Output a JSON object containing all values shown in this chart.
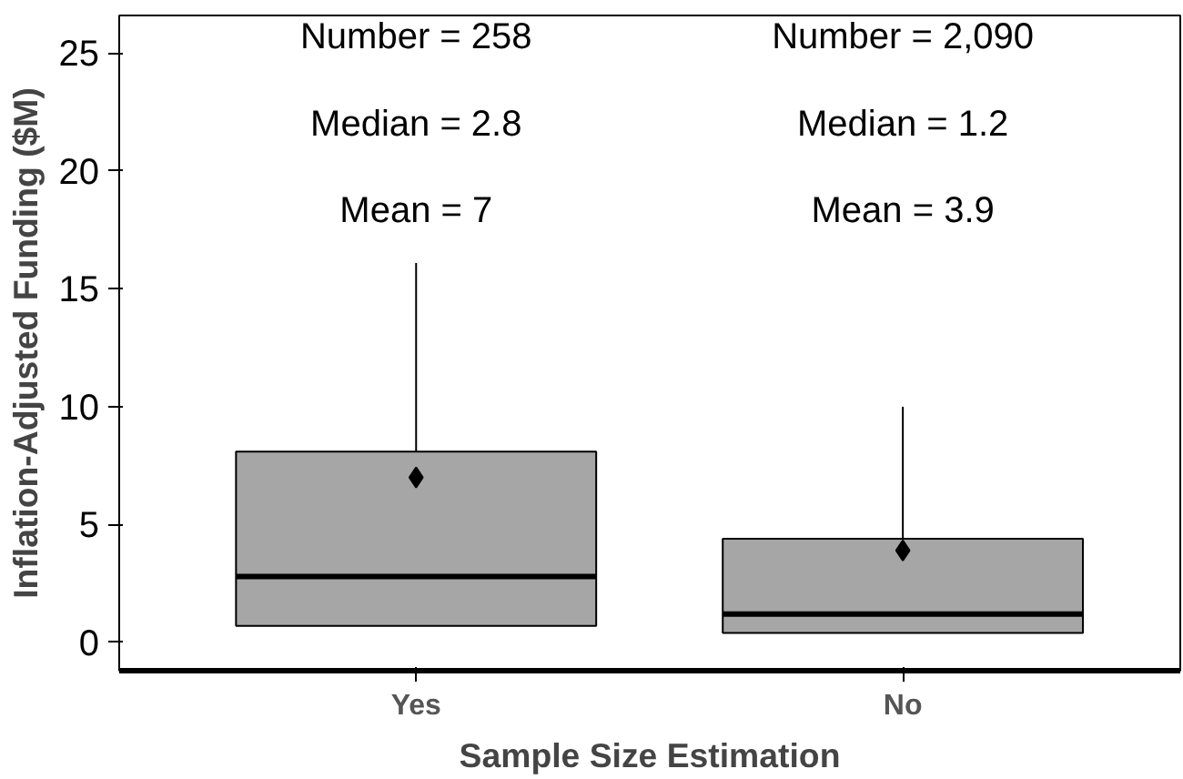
{
  "chart_data": {
    "type": "box",
    "xlabel": "Sample Size Estimation",
    "ylabel": "Inflation-Adjusted Funding ($M)",
    "categories": [
      "Yes",
      "No"
    ],
    "boxes": [
      {
        "low": 0.7,
        "q1": 0.7,
        "median": 2.8,
        "q3": 8.1,
        "high": 16.1,
        "mean": 7
      },
      {
        "low": 0.4,
        "q1": 0.4,
        "median": 1.2,
        "q3": 4.4,
        "high": 10.0,
        "mean": 3.9
      }
    ],
    "color": "#a6a6a6",
    "ylim": [
      -1.2,
      26.6
    ],
    "yticks": [
      0,
      5,
      10,
      15,
      20,
      25
    ],
    "grid": false,
    "marker": "diamond",
    "annotations": [
      "Number = 258",
      "Median = 2.8",
      "Mean = 7",
      "Number = 2,090",
      "Median = 1.2",
      "Mean = 3.9"
    ]
  }
}
